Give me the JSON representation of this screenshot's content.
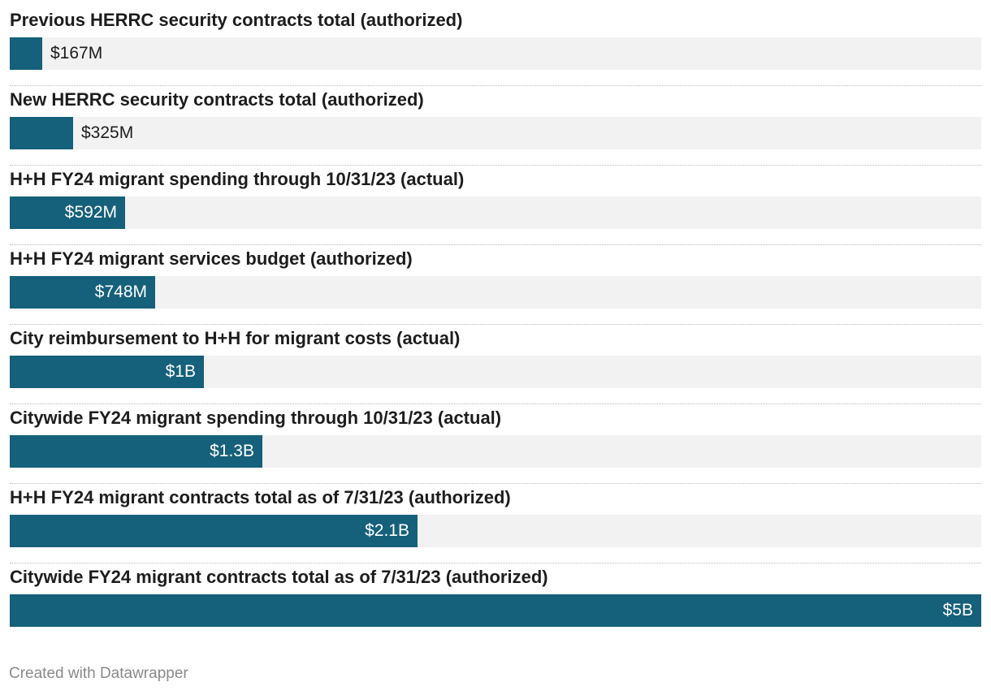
{
  "chart_data": {
    "type": "bar",
    "orientation": "horizontal",
    "unit": "USD",
    "xlim": [
      0,
      5000000000
    ],
    "grid": false,
    "categories": [
      "Previous HERRC security contracts total (authorized)",
      "New HERRC security contracts total (authorized)",
      "H+H FY24 migrant spending through 10/31/23 (actual)",
      "H+H FY24 migrant services budget (authorized)",
      "City reimbursement to H+H for migrant costs (actual)",
      "Citywide FY24 migrant spending through 10/31/23 (actual)",
      "H+H FY24 migrant contracts total as of 7/31/23 (authorized)",
      "Citywide FY24 migrant contracts total as of 7/31/23 (authorized)"
    ],
    "values": [
      167000000,
      325000000,
      592000000,
      748000000,
      1000000000,
      1300000000,
      2100000000,
      5000000000
    ],
    "value_labels": [
      "$167M",
      "$325M",
      "$592M",
      "$748M",
      "$1B",
      "$1.3B",
      "$2.1B",
      "$5B"
    ],
    "colors": {
      "bar": "#15607a",
      "track": "#f2f2f2"
    }
  },
  "footer": {
    "credit": "Created with Datawrapper"
  }
}
